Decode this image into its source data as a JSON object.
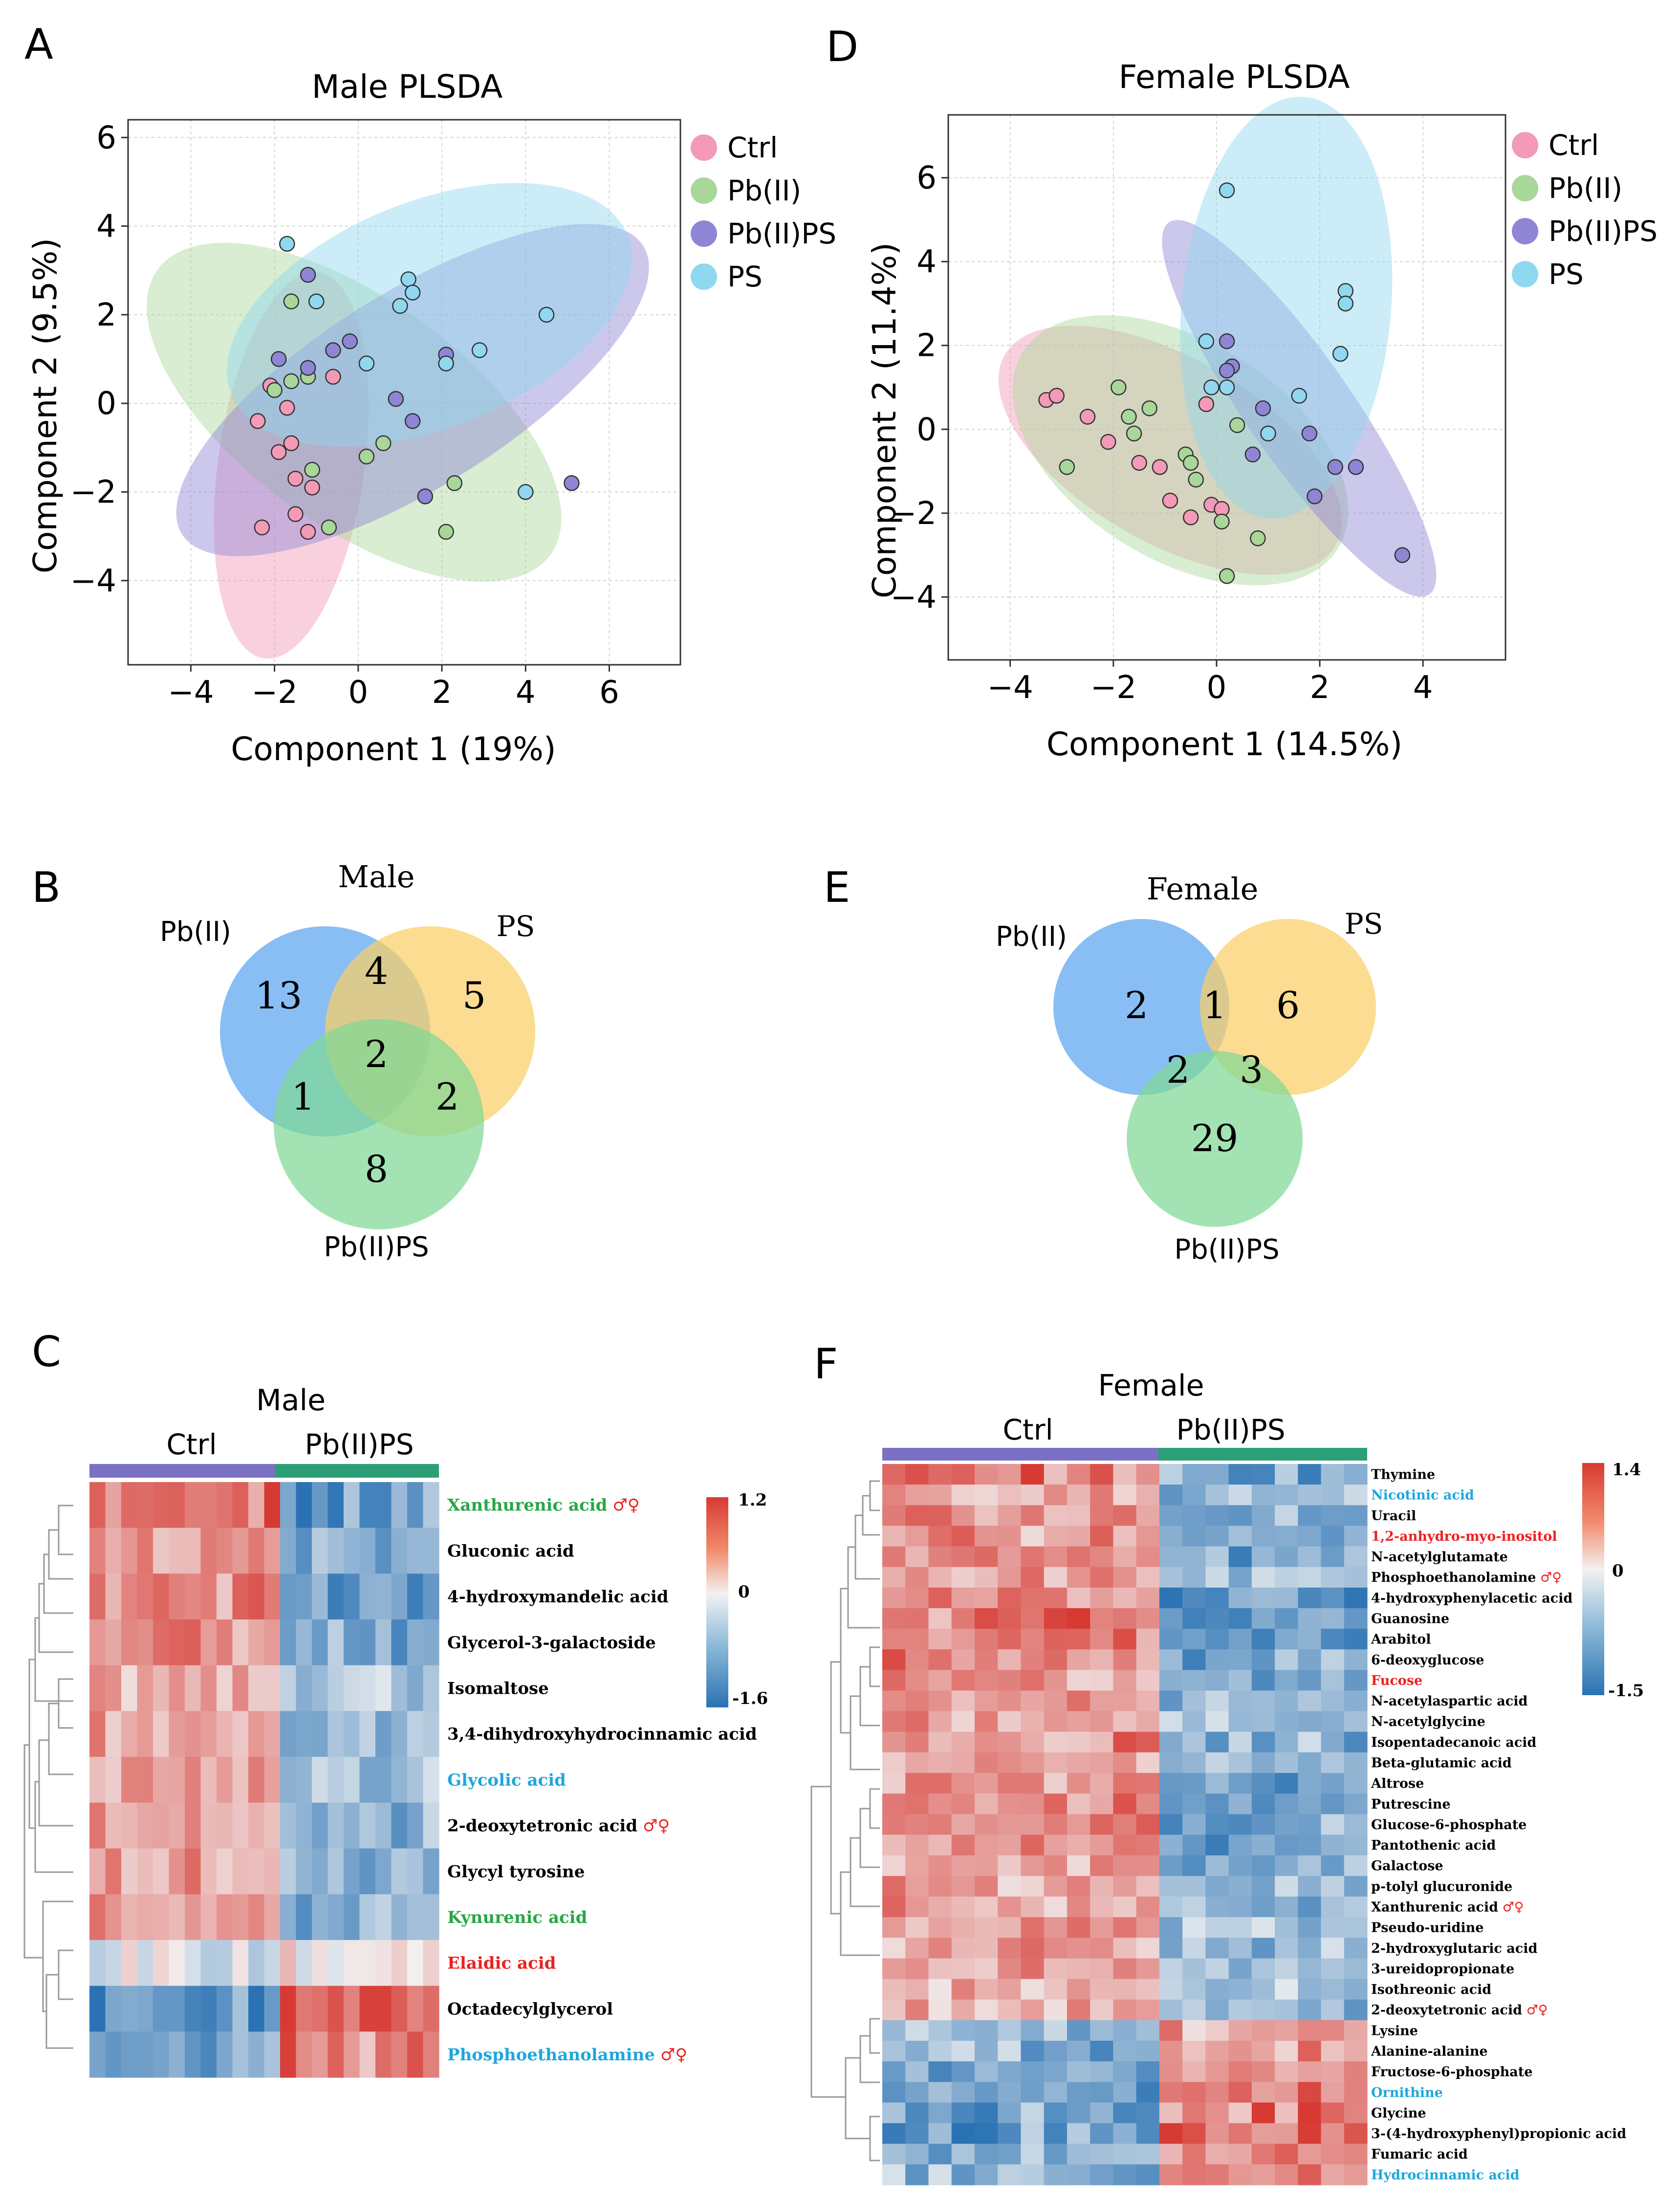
{
  "colors": {
    "ctrl": "#f29ab6",
    "pb": "#a9d699",
    "pbps": "#8e86d4",
    "ps": "#8fd8ef",
    "venn_pb": "#5aa5f0",
    "venn_ps": "#f9cf67",
    "venn_pbps": "#7fd896",
    "hm_low": "#2a72b3",
    "hm_mid": "#f2f2f2",
    "hm_high": "#d73a33",
    "bar_ctrl": "#7a71c4",
    "bar_pbps": "#2c9f76",
    "label_green": "#28a745",
    "label_blue": "#1fa7dc",
    "label_red": "#ee2020",
    "label_black": "#000000"
  },
  "panels": {
    "A": "A",
    "B": "B",
    "C": "C",
    "D": "D",
    "E": "E",
    "F": "F"
  },
  "chart_data": [
    {
      "id": "A",
      "type": "scatter",
      "title": "Male PLSDA",
      "xlabel": "Component 1 (19%)",
      "ylabel": "Component 2 (9.5%)",
      "xlim": [
        -5.5,
        7.7
      ],
      "ylim": [
        -5.9,
        6.4
      ],
      "xticks": [
        -4,
        -2,
        0,
        2,
        4,
        6
      ],
      "yticks": [
        -4,
        -2,
        0,
        2,
        4,
        6
      ],
      "legend": [
        "Ctrl",
        "Pb(II)",
        "Pb(II)PS",
        "PS"
      ],
      "groups": [
        {
          "name": "Ctrl",
          "ellipse": {
            "cx": -1.6,
            "cy": -1.4,
            "rx": 1.75,
            "ry": 4.4,
            "angle": 8
          },
          "points": [
            [
              -2.4,
              -0.4
            ],
            [
              -1.6,
              -0.9
            ],
            [
              -1.5,
              -1.7
            ],
            [
              -1.9,
              -1.1
            ],
            [
              -2.3,
              -2.8
            ],
            [
              -1.5,
              -2.5
            ],
            [
              -1.2,
              -2.9
            ],
            [
              -1.1,
              -1.9
            ],
            [
              -0.6,
              0.6
            ],
            [
              -1.7,
              -0.1
            ],
            [
              -2.1,
              0.4
            ]
          ]
        },
        {
          "name": "Pb(II)",
          "ellipse": {
            "cx": -0.1,
            "cy": -0.2,
            "rx": 5.8,
            "ry": 2.55,
            "angle": 36
          },
          "points": [
            [
              -2.0,
              0.3
            ],
            [
              -1.6,
              0.5
            ],
            [
              -1.2,
              0.6
            ],
            [
              -1.1,
              -1.5
            ],
            [
              -0.7,
              -2.8
            ],
            [
              0.2,
              -1.2
            ],
            [
              0.6,
              -0.9
            ],
            [
              2.3,
              -1.8
            ],
            [
              2.1,
              -2.9
            ],
            [
              -1.6,
              2.3
            ]
          ]
        },
        {
          "name": "Pb(II)PS",
          "ellipse": {
            "cx": 1.3,
            "cy": 0.3,
            "rx": 6.5,
            "ry": 2.2,
            "angle": -32
          },
          "points": [
            [
              -1.2,
              2.9
            ],
            [
              -1.9,
              1.0
            ],
            [
              -1.2,
              0.8
            ],
            [
              -0.2,
              1.4
            ],
            [
              0.9,
              0.1
            ],
            [
              1.3,
              -0.4
            ],
            [
              1.6,
              -2.1
            ],
            [
              2.1,
              1.1
            ],
            [
              5.1,
              -1.8
            ],
            [
              -0.6,
              1.2
            ]
          ]
        },
        {
          "name": "PS",
          "ellipse": {
            "cx": 1.7,
            "cy": 2.0,
            "rx": 5.1,
            "ry": 2.55,
            "angle": -22
          },
          "points": [
            [
              -1.7,
              3.6
            ],
            [
              -1.0,
              2.3
            ],
            [
              0.2,
              0.9
            ],
            [
              1.0,
              2.2
            ],
            [
              1.2,
              2.8
            ],
            [
              1.3,
              2.5
            ],
            [
              2.1,
              0.9
            ],
            [
              2.9,
              1.2
            ],
            [
              4.0,
              -2.0
            ],
            [
              4.5,
              2.0
            ]
          ]
        }
      ]
    },
    {
      "id": "D",
      "type": "scatter",
      "title": "Female PLSDA",
      "xlabel": "Component 1 (14.5%)",
      "ylabel": "Component 2 (11.4%)",
      "xlim": [
        -5.2,
        5.6
      ],
      "ylim": [
        -5.5,
        7.5
      ],
      "xticks": [
        -4,
        -2,
        0,
        2,
        4
      ],
      "yticks": [
        -4,
        -2,
        0,
        2,
        4,
        6
      ],
      "legend": [
        "Ctrl",
        "Pb(II)",
        "Pb(II)PS",
        "PS"
      ],
      "groups": [
        {
          "name": "Ctrl",
          "ellipse": {
            "cx": -0.9,
            "cy": -0.5,
            "rx": 3.7,
            "ry": 2.2,
            "angle": 30
          },
          "points": [
            [
              -3.3,
              0.7
            ],
            [
              -3.1,
              0.8
            ],
            [
              -2.5,
              0.3
            ],
            [
              -2.1,
              -0.3
            ],
            [
              -1.5,
              -0.8
            ],
            [
              -1.1,
              -0.9
            ],
            [
              -0.9,
              -1.7
            ],
            [
              -0.5,
              -2.1
            ],
            [
              -0.2,
              0.6
            ],
            [
              -0.1,
              -1.8
            ],
            [
              0.1,
              -1.9
            ]
          ]
        },
        {
          "name": "Pb(II)",
          "ellipse": {
            "cx": -0.7,
            "cy": -0.5,
            "rx": 3.6,
            "ry": 2.6,
            "angle": 32
          },
          "points": [
            [
              -2.9,
              -0.9
            ],
            [
              -1.9,
              1.0
            ],
            [
              -1.7,
              0.3
            ],
            [
              -1.6,
              -0.1
            ],
            [
              -1.3,
              0.5
            ],
            [
              -0.6,
              -0.6
            ],
            [
              -0.4,
              -1.2
            ],
            [
              -0.5,
              -0.8
            ],
            [
              0.1,
              -2.2
            ],
            [
              0.4,
              0.1
            ],
            [
              0.8,
              -2.6
            ],
            [
              0.2,
              -3.5
            ]
          ]
        },
        {
          "name": "Pb(II)PS",
          "ellipse": {
            "cx": 1.6,
            "cy": 0.5,
            "rx": 4.4,
            "ry": 1.25,
            "angle": 55
          },
          "points": [
            [
              0.2,
              2.1
            ],
            [
              0.3,
              1.5
            ],
            [
              0.9,
              0.5
            ],
            [
              0.7,
              -0.6
            ],
            [
              1.8,
              -0.1
            ],
            [
              2.3,
              -0.9
            ],
            [
              2.7,
              -0.9
            ],
            [
              1.9,
              -1.6
            ],
            [
              3.6,
              -3.0
            ],
            [
              0.2,
              1.4
            ]
          ]
        },
        {
          "name": "PS",
          "ellipse": {
            "cx": 1.35,
            "cy": 2.9,
            "rx": 4.1,
            "ry": 2.5,
            "angle": 95
          },
          "points": [
            [
              0.2,
              5.7
            ],
            [
              -0.2,
              2.1
            ],
            [
              -0.1,
              1.0
            ],
            [
              0.2,
              1.0
            ],
            [
              1.0,
              -0.1
            ],
            [
              1.6,
              0.8
            ],
            [
              2.4,
              1.8
            ],
            [
              2.5,
              3.3
            ],
            [
              2.5,
              3.0
            ]
          ]
        }
      ]
    },
    {
      "id": "B",
      "type": "venn",
      "title": "Male",
      "sets": [
        "Pb(II)",
        "PS",
        "Pb(II)PS"
      ],
      "regions": {
        "pb_only": "13",
        "ps_only": "5",
        "pbps_only": "8",
        "pb_ps": "4",
        "pb_pbps": "1",
        "ps_pbps": "2",
        "all": "2"
      }
    },
    {
      "id": "E",
      "type": "venn",
      "title": "Female",
      "sets": [
        "Pb(II)",
        "PS",
        "Pb(II)PS"
      ],
      "regions": {
        "pb_only": "2",
        "ps_only": "6",
        "pbps_only": "29",
        "pb_ps": "1",
        "pb_pbps": "2",
        "ps_pbps": "3"
      }
    },
    {
      "id": "C",
      "type": "heatmap",
      "title": "Male",
      "groups": [
        "Ctrl",
        "Pb(II)PS"
      ],
      "group_columns": [
        12,
        10
      ],
      "colorbar": {
        "max": "1.2",
        "mid": "0",
        "min": "-1.6"
      },
      "rows": [
        {
          "label": "Xanthurenic acid",
          "mark": "♂♀",
          "color": "green",
          "trend": 0.9
        },
        {
          "label": "Gluconic acid",
          "mark": "",
          "color": "black",
          "trend": 0.6
        },
        {
          "label": "4-hydroxymandelic acid",
          "mark": "",
          "color": "black",
          "trend": 0.7
        },
        {
          "label": "Glycerol-3-galactoside",
          "mark": "",
          "color": "black",
          "trend": 0.75
        },
        {
          "label": "Isomaltose",
          "mark": "",
          "color": "black",
          "trend": 0.4
        },
        {
          "label": "3,4-dihydroxyhydrocinnamic acid",
          "mark": "",
          "color": "black",
          "trend": 0.6
        },
        {
          "label": "Glycolic acid",
          "mark": "",
          "color": "blue",
          "trend": 0.5
        },
        {
          "label": "2-deoxytetronic acid",
          "mark": "♂♀",
          "color": "black",
          "trend": 0.6
        },
        {
          "label": "Glycyl tyrosine",
          "mark": "",
          "color": "black",
          "trend": 0.6
        },
        {
          "label": "Kynurenic acid",
          "mark": "",
          "color": "green",
          "trend": 0.6
        },
        {
          "label": "Elaidic acid",
          "mark": "",
          "color": "red",
          "trend": -0.1
        },
        {
          "label": "Octadecylglycerol",
          "mark": "",
          "color": "black",
          "trend": -0.8
        },
        {
          "label": "Phosphoethanolamine",
          "mark": "♂♀",
          "color": "blue",
          "trend": -0.7
        }
      ]
    },
    {
      "id": "F",
      "type": "heatmap",
      "title": "Female",
      "groups": [
        "Ctrl",
        "Pb(II)PS"
      ],
      "group_columns": [
        12,
        9
      ],
      "colorbar": {
        "max": "1.4",
        "mid": "0",
        "min": "-1.5"
      },
      "rows": [
        {
          "label": "Thymine",
          "mark": "",
          "color": "black",
          "trend": 0.7
        },
        {
          "label": "Nicotinic acid",
          "mark": "",
          "color": "blue",
          "trend": 0.5
        },
        {
          "label": "Uracil",
          "mark": "",
          "color": "black",
          "trend": 0.6
        },
        {
          "label": "1,2-anhydro-myo-inositol",
          "mark": "",
          "color": "red",
          "trend": 0.6
        },
        {
          "label": "N-acetylglutamate",
          "mark": "",
          "color": "black",
          "trend": 0.6
        },
        {
          "label": "Phosphoethanolamine",
          "mark": "♂♀",
          "color": "black",
          "trend": 0.5
        },
        {
          "label": "4-hydroxyphenylacetic acid",
          "mark": "",
          "color": "black",
          "trend": 0.7
        },
        {
          "label": "Guanosine",
          "mark": "",
          "color": "black",
          "trend": 0.8
        },
        {
          "label": "Arabitol",
          "mark": "",
          "color": "black",
          "trend": 0.7
        },
        {
          "label": "6-deoxyglucose",
          "mark": "",
          "color": "black",
          "trend": 0.7
        },
        {
          "label": "Fucose",
          "mark": "",
          "color": "red",
          "trend": 0.6
        },
        {
          "label": "N-acetylaspartic acid",
          "mark": "",
          "color": "black",
          "trend": 0.5
        },
        {
          "label": "N-acetylglycine",
          "mark": "",
          "color": "black",
          "trend": 0.5
        },
        {
          "label": "Isopentadecanoic acid",
          "mark": "",
          "color": "black",
          "trend": 0.6
        },
        {
          "label": "Beta-glutamic acid",
          "mark": "",
          "color": "black",
          "trend": 0.6
        },
        {
          "label": "Altrose",
          "mark": "",
          "color": "black",
          "trend": 0.7
        },
        {
          "label": "Putrescine",
          "mark": "",
          "color": "black",
          "trend": 0.7
        },
        {
          "label": "Glucose-6-phosphate",
          "mark": "",
          "color": "black",
          "trend": 0.7
        },
        {
          "label": "Pantothenic acid",
          "mark": "",
          "color": "black",
          "trend": 0.6
        },
        {
          "label": "Galactose",
          "mark": "",
          "color": "black",
          "trend": 0.6
        },
        {
          "label": "p-tolyl glucuronide",
          "mark": "",
          "color": "black",
          "trend": 0.5
        },
        {
          "label": "Xanthurenic acid",
          "mark": "♂♀",
          "color": "black",
          "trend": 0.5
        },
        {
          "label": "Pseudo-uridine",
          "mark": "",
          "color": "black",
          "trend": 0.5
        },
        {
          "label": "2-hydroxyglutaric acid",
          "mark": "",
          "color": "black",
          "trend": 0.5
        },
        {
          "label": "3-ureidopropionate",
          "mark": "",
          "color": "black",
          "trend": 0.5
        },
        {
          "label": "Isothreonic acid",
          "mark": "",
          "color": "black",
          "trend": 0.5
        },
        {
          "label": "2-deoxytetronic acid",
          "mark": "♂♀",
          "color": "black",
          "trend": 0.5
        },
        {
          "label": "Lysine",
          "mark": "",
          "color": "black",
          "trend": -0.6
        },
        {
          "label": "Alanine-alanine",
          "mark": "",
          "color": "black",
          "trend": -0.6
        },
        {
          "label": "Fructose-6-phosphate",
          "mark": "",
          "color": "black",
          "trend": -0.6
        },
        {
          "label": "Ornithine",
          "mark": "",
          "color": "blue",
          "trend": -0.7
        },
        {
          "label": "Glycine",
          "mark": "",
          "color": "black",
          "trend": -0.8
        },
        {
          "label": "3-(4-hydroxyphenyl)propionic acid",
          "mark": "",
          "color": "black",
          "trend": -0.8
        },
        {
          "label": "Fumaric acid",
          "mark": "",
          "color": "black",
          "trend": -0.6
        },
        {
          "label": "Hydrocinnamic acid",
          "mark": "",
          "color": "blue",
          "trend": -0.6
        }
      ]
    }
  ]
}
